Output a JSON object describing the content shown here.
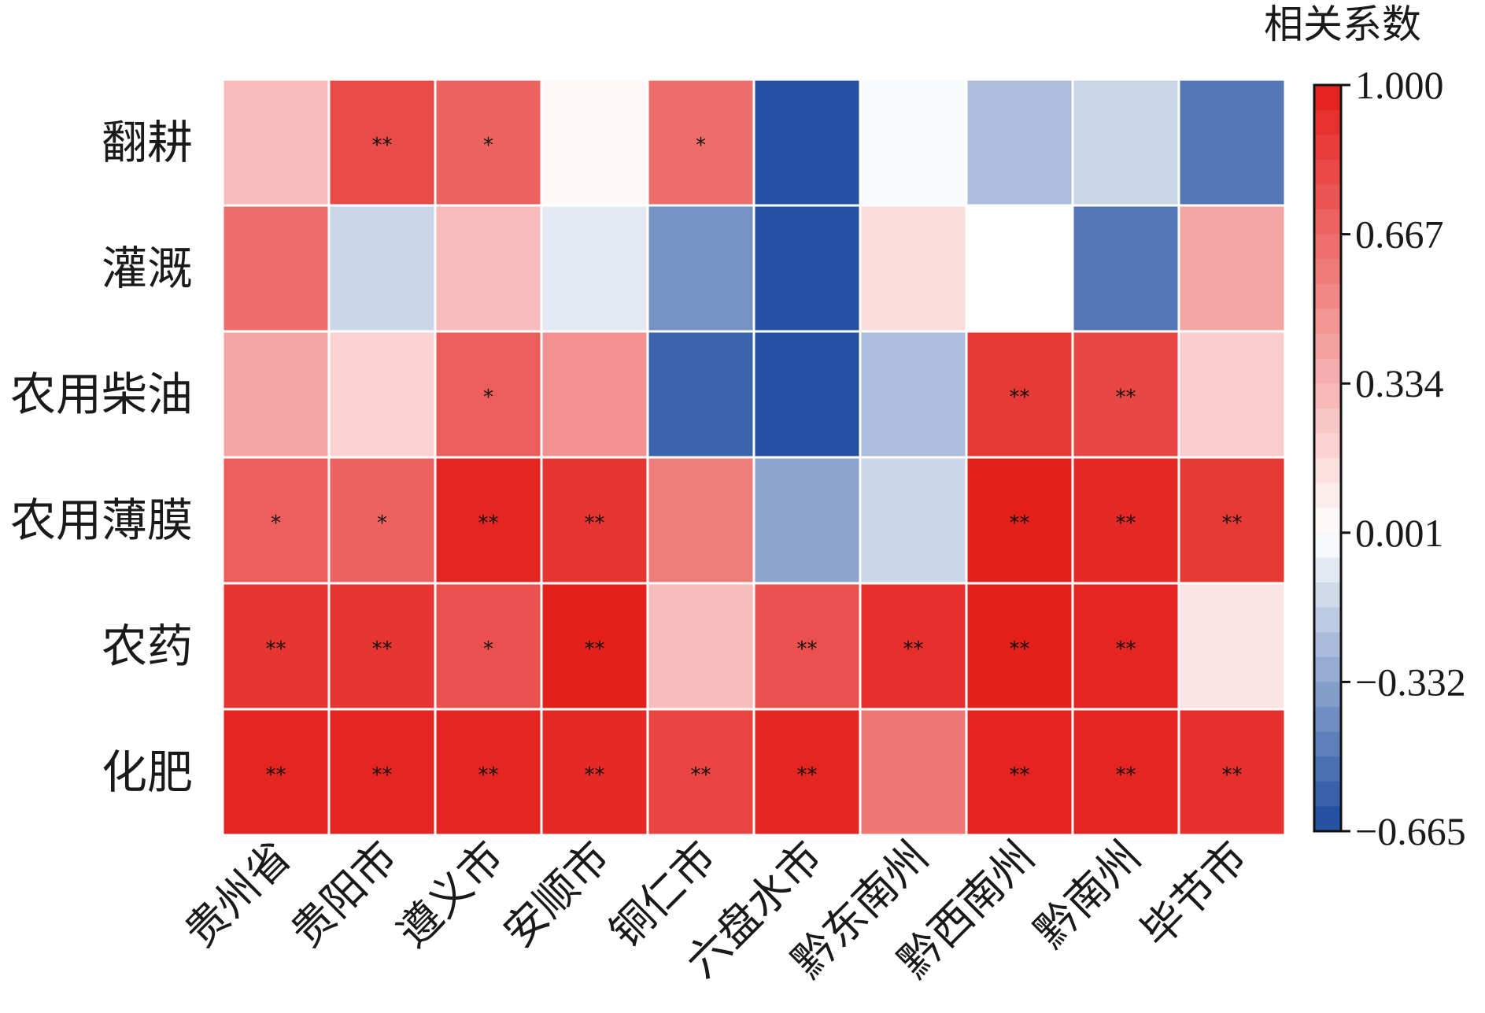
{
  "chart_data": {
    "type": "heatmap",
    "rows": [
      "翻耕",
      "灌溉",
      "农用柴油",
      "农用薄膜",
      "农药",
      "化肥"
    ],
    "columns": [
      "贵州省",
      "贵阳市",
      "遵义市",
      "安顺市",
      "铜仁市",
      "六盘水市",
      "黔东南州",
      "黔西南州",
      "黔南州",
      "毕节市"
    ],
    "values": [
      [
        0.3,
        0.8,
        0.7,
        0.03,
        0.65,
        -0.64,
        -0.02,
        -0.24,
        -0.15,
        -0.5
      ],
      [
        0.65,
        -0.15,
        0.3,
        -0.08,
        -0.4,
        -0.64,
        0.15,
        0.0,
        -0.5,
        0.4
      ],
      [
        0.4,
        0.2,
        0.72,
        0.48,
        -0.57,
        -0.64,
        -0.24,
        0.88,
        0.82,
        0.22
      ],
      [
        0.72,
        0.7,
        0.97,
        0.9,
        0.58,
        -0.33,
        -0.15,
        0.99,
        0.95,
        0.88
      ],
      [
        0.9,
        0.9,
        0.78,
        0.99,
        0.3,
        0.78,
        0.92,
        0.99,
        0.97,
        0.12
      ],
      [
        0.97,
        0.97,
        0.97,
        0.95,
        0.83,
        0.97,
        0.6,
        0.98,
        0.97,
        0.92
      ]
    ],
    "significance": [
      [
        "",
        "**",
        "*",
        "",
        "*",
        "",
        "",
        "",
        "",
        ""
      ],
      [
        "",
        "",
        "",
        "",
        "",
        "",
        "",
        "",
        "",
        ""
      ],
      [
        "",
        "",
        "*",
        "",
        "",
        "",
        "",
        "**",
        "**",
        ""
      ],
      [
        "*",
        "*",
        "**",
        "**",
        "",
        "",
        "",
        "**",
        "**",
        "**"
      ],
      [
        "**",
        "**",
        "*",
        "**",
        "",
        "**",
        "**",
        "**",
        "**",
        ""
      ],
      [
        "**",
        "**",
        "**",
        "**",
        "**",
        "**",
        "",
        "**",
        "**",
        "**"
      ]
    ],
    "color_range": [
      -0.665,
      1.0
    ],
    "colorbar": {
      "title": "相关系数",
      "ticks": [
        1.0,
        0.667,
        0.334,
        0.001,
        -0.332,
        -0.665
      ],
      "tick_labels": [
        "1.000",
        "0.667",
        "0.334",
        "0.001",
        "−0.332",
        "−0.665"
      ]
    },
    "colors": {
      "low": "#1b4a9e",
      "mid": "#ffffff",
      "high": "#e41e1b"
    }
  }
}
